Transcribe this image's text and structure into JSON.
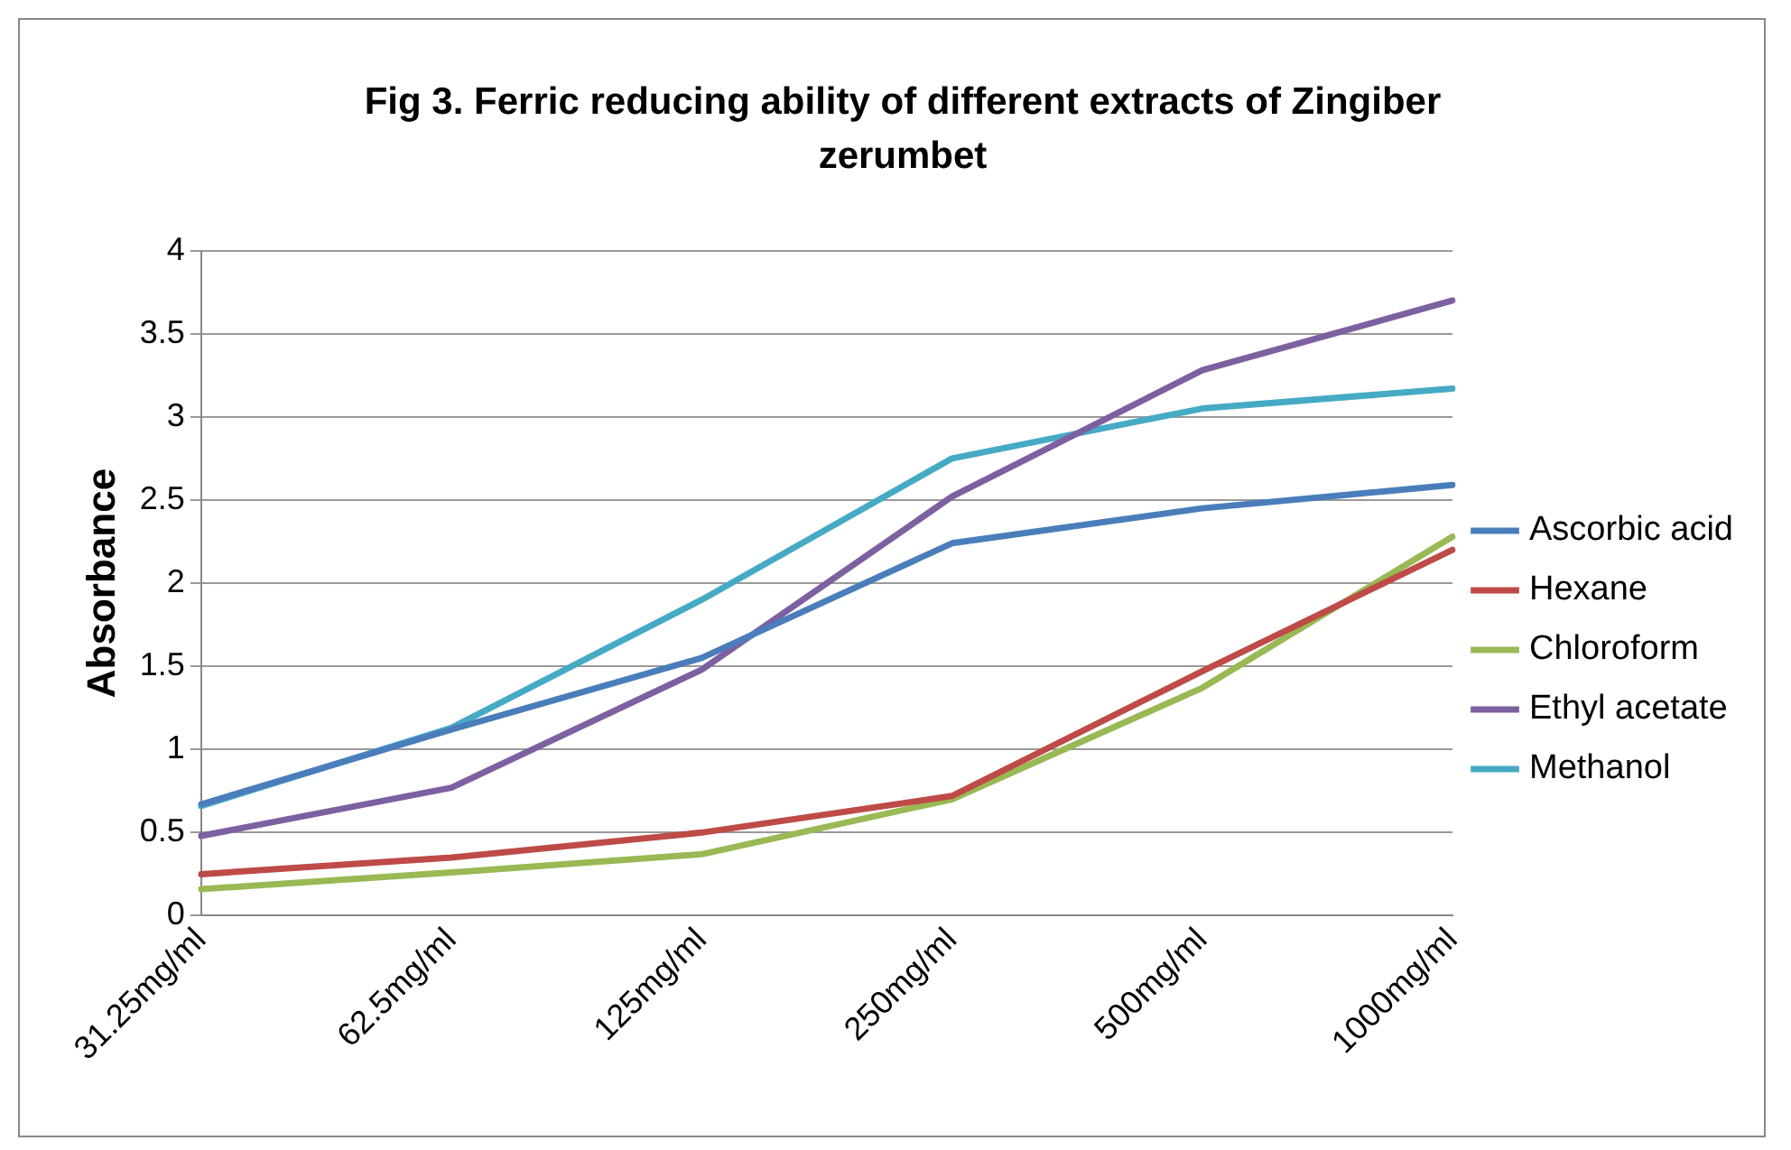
{
  "chart_data": {
    "type": "line",
    "title": "Fig 3. Ferric reducing ability of different extracts of Zingiber zerumbet",
    "ylabel": "Absorbance",
    "categories": [
      "31.25mg/ml",
      "62.5mg/ml",
      "125mg/ml",
      "250mg/ml",
      "500mg/ml",
      "1000mg/ml"
    ],
    "series": [
      {
        "name": "Ascorbic acid",
        "color": "#4a7ebb",
        "values": [
          0.67,
          1.12,
          1.55,
          2.24,
          2.45,
          2.59
        ]
      },
      {
        "name": "Hexane",
        "color": "#be4b48",
        "values": [
          0.25,
          0.35,
          0.5,
          0.72,
          1.47,
          2.2
        ]
      },
      {
        "name": "Chloroform",
        "color": "#98b954",
        "values": [
          0.16,
          0.26,
          0.37,
          0.7,
          1.37,
          2.28
        ]
      },
      {
        "name": "Ethyl acetate",
        "color": "#7d60a0",
        "values": [
          0.48,
          0.77,
          1.48,
          2.52,
          3.28,
          3.7
        ]
      },
      {
        "name": "Methanol",
        "color": "#46aac5",
        "values": [
          0.66,
          1.13,
          1.9,
          2.75,
          3.05,
          3.17
        ]
      }
    ],
    "ylim": [
      0,
      4
    ],
    "yticks": [
      0,
      0.5,
      1,
      1.5,
      2,
      2.5,
      3,
      3.5,
      4
    ],
    "grid": "y",
    "legend": "right",
    "marker": "none",
    "line_style": "solid"
  }
}
